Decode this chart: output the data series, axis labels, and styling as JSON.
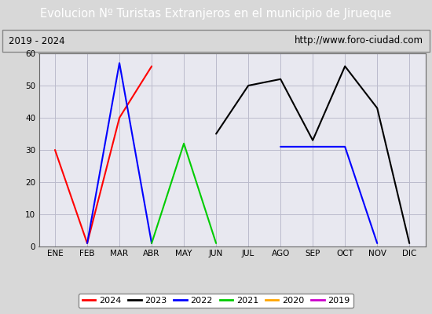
{
  "title": "Evolucion Nº Turistas Extranjeros en el municipio de Jirueque",
  "subtitle_left": "2019 - 2024",
  "subtitle_right": "http://www.foro-ciudad.com",
  "months": [
    "ENE",
    "FEB",
    "MAR",
    "ABR",
    "MAY",
    "JUN",
    "JUL",
    "AGO",
    "SEP",
    "OCT",
    "NOV",
    "DIC"
  ],
  "series": {
    "2024": {
      "color": "#ff0000",
      "data": [
        30,
        1,
        40,
        56,
        null,
        null,
        null,
        null,
        null,
        null,
        null,
        null
      ]
    },
    "2023": {
      "color": "#000000",
      "data": [
        null,
        null,
        null,
        null,
        null,
        35,
        50,
        52,
        33,
        56,
        43,
        1
      ]
    },
    "2022": {
      "color": "#0000ff",
      "data": [
        null,
        1,
        57,
        1,
        null,
        null,
        null,
        31,
        31,
        31,
        1,
        null
      ]
    },
    "2021": {
      "color": "#00cc00",
      "data": [
        null,
        null,
        null,
        1,
        32,
        1,
        null,
        null,
        null,
        null,
        null,
        null
      ]
    },
    "2020": {
      "color": "#ffa500",
      "data": [
        null,
        null,
        null,
        null,
        null,
        null,
        null,
        null,
        null,
        null,
        null,
        null
      ]
    },
    "2019": {
      "color": "#cc00cc",
      "data": [
        null,
        null,
        null,
        null,
        null,
        null,
        null,
        null,
        null,
        null,
        null,
        null
      ]
    }
  },
  "ylim": [
    0,
    60
  ],
  "yticks": [
    0,
    10,
    20,
    30,
    40,
    50,
    60
  ],
  "legend_order": [
    "2024",
    "2023",
    "2022",
    "2021",
    "2020",
    "2019"
  ],
  "title_bg_color": "#4d8bc9",
  "title_font_color": "#ffffff",
  "outer_bg_color": "#d8d8d8",
  "inner_bg_color": "#e8e8f0",
  "grid_color": "#bbbbcc",
  "border_color": "#666666"
}
